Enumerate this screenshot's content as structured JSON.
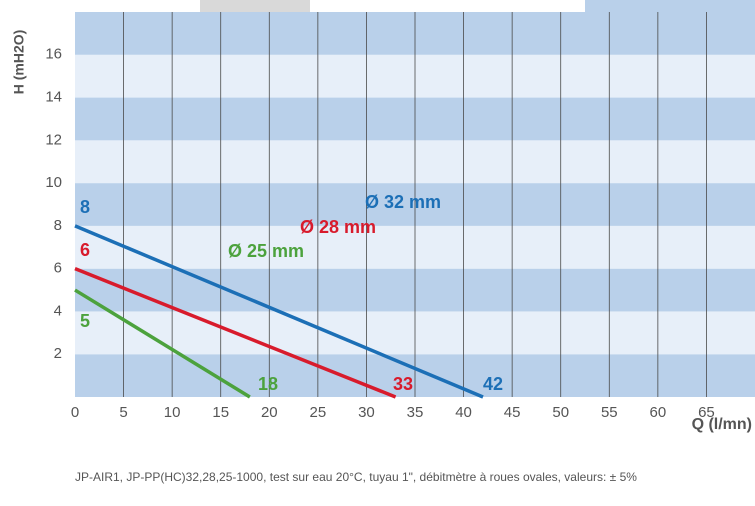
{
  "chart_data": {
    "type": "line",
    "ylabel": "H (mH2O)",
    "xlabel": "Q (l/mn)",
    "note": "JP-AIR1, JP-PP(HC)32,28,25-1000, test sur eau 20°C, tuyau 1\", débitmètre à roues ovales, valeurs: ± 5%",
    "xlim": [
      0,
      70
    ],
    "xticks": [
      0,
      5,
      10,
      15,
      20,
      25,
      30,
      35,
      40,
      45,
      50,
      55,
      60,
      65
    ],
    "ylim": [
      0,
      18
    ],
    "yticks": [
      2,
      4,
      6,
      8,
      10,
      12,
      14,
      16
    ],
    "band_colors": [
      "#b9d0ea",
      "#e7eff9"
    ],
    "grid_color": "#4a4a4a",
    "series": [
      {
        "name": "Ø 25 mm",
        "color": "#4ca23d",
        "x": [
          0,
          18
        ],
        "values": [
          5,
          0
        ]
      },
      {
        "name": "Ø 28 mm",
        "color": "#d81b2c",
        "x": [
          0,
          33
        ],
        "values": [
          6,
          0
        ]
      },
      {
        "name": "Ø 32 mm",
        "color": "#1c6fb6",
        "x": [
          0,
          42
        ],
        "values": [
          8,
          0
        ]
      }
    ]
  }
}
